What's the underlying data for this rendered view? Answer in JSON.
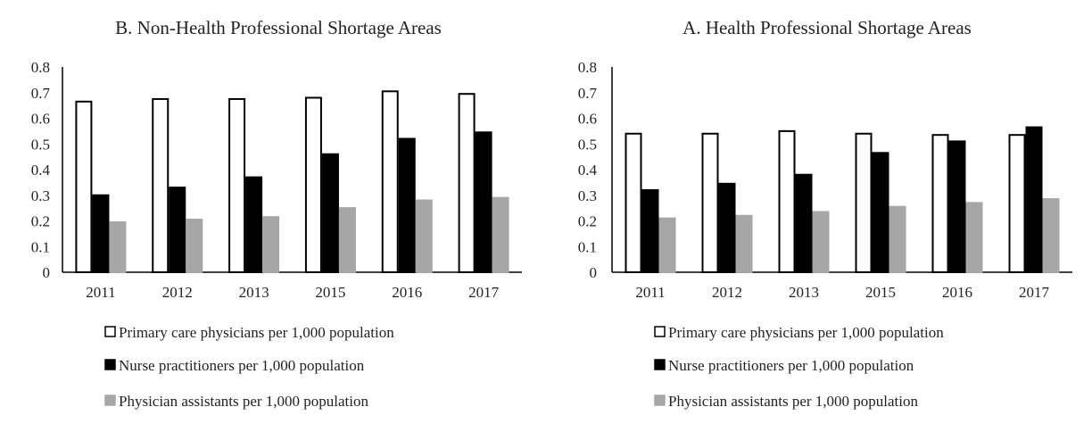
{
  "chart_data": [
    {
      "type": "bar",
      "title": "B. Non-Health Professional Shortage Areas",
      "categories": [
        "2011",
        "2012",
        "2013",
        "2015",
        "2016",
        "2017"
      ],
      "ylim": [
        0,
        0.8
      ],
      "yticks": [
        "0",
        "0.1",
        "0.2",
        "0.3",
        "0.4",
        "0.5",
        "0.6",
        "0.7",
        "0.8"
      ],
      "series": [
        {
          "name": "Primary care physicians per 1,000 population",
          "color": "#ffffff",
          "stroke": "#000000",
          "values": [
            0.665,
            0.675,
            0.675,
            0.68,
            0.705,
            0.695
          ]
        },
        {
          "name": "Nurse practitioners per 1,000 population",
          "color": "#000000",
          "stroke": "#000000",
          "values": [
            0.3,
            0.33,
            0.37,
            0.46,
            0.52,
            0.545
          ]
        },
        {
          "name": "Physician assistants per 1,000 population",
          "color": "#a6a6a6",
          "stroke": "#a6a6a6",
          "values": [
            0.195,
            0.205,
            0.215,
            0.25,
            0.28,
            0.29
          ]
        }
      ]
    },
    {
      "type": "bar",
      "title": "A. Health Professional Shortage Areas",
      "categories": [
        "2011",
        "2012",
        "2013",
        "2015",
        "2016",
        "2017"
      ],
      "ylim": [
        0,
        0.8
      ],
      "yticks": [
        "0",
        "0.1",
        "0.2",
        "0.3",
        "0.4",
        "0.5",
        "0.6",
        "0.7",
        "0.8"
      ],
      "series": [
        {
          "name": "Primary care physicians per 1,000 population",
          "color": "#ffffff",
          "stroke": "#000000",
          "values": [
            0.54,
            0.54,
            0.55,
            0.54,
            0.535,
            0.535
          ]
        },
        {
          "name": "Nurse practitioners per 1,000 population",
          "color": "#000000",
          "stroke": "#000000",
          "values": [
            0.32,
            0.345,
            0.38,
            0.465,
            0.51,
            0.565
          ]
        },
        {
          "name": "Physician assistants per 1,000 population",
          "color": "#a6a6a6",
          "stroke": "#a6a6a6",
          "values": [
            0.21,
            0.22,
            0.235,
            0.255,
            0.27,
            0.285
          ]
        }
      ]
    }
  ]
}
